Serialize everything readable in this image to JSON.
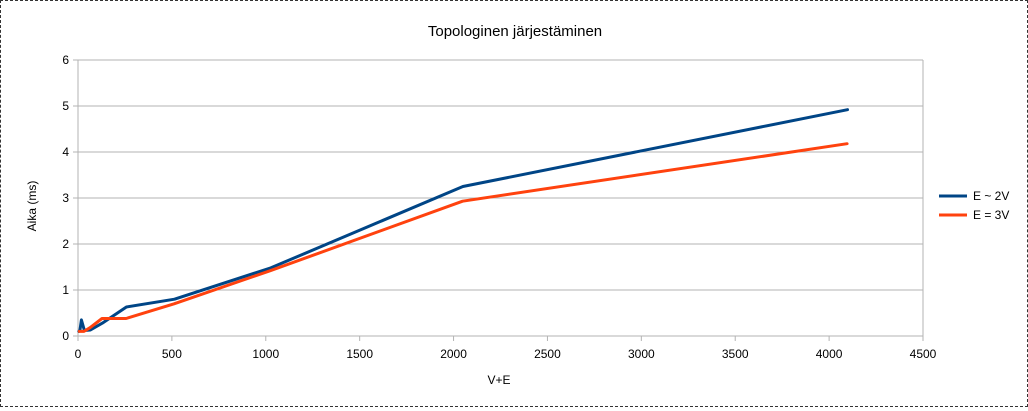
{
  "chart_data": {
    "type": "line",
    "title": "Topologinen järjestäminen",
    "xlabel": "V+E",
    "ylabel": "Aika (ms)",
    "xlim": [
      0,
      4500
    ],
    "ylim": [
      0,
      6
    ],
    "xticks": [
      "0",
      "500",
      "1000",
      "1500",
      "2000",
      "2500",
      "3000",
      "3500",
      "4000",
      "4500"
    ],
    "yticks": [
      "0",
      "1",
      "2",
      "3",
      "4",
      "5",
      "6"
    ],
    "grid": "horizontal",
    "legend_position": "right",
    "series": [
      {
        "name": "E ~ 2V",
        "color": "#004586",
        "points": [
          [
            5,
            0.1
          ],
          [
            10,
            0.12
          ],
          [
            18,
            0.35
          ],
          [
            34,
            0.12
          ],
          [
            66,
            0.13
          ],
          [
            130,
            0.28
          ],
          [
            258,
            0.63
          ],
          [
            514,
            0.8
          ],
          [
            1026,
            1.48
          ],
          [
            2050,
            3.25
          ],
          [
            4098,
            4.92
          ]
        ]
      },
      {
        "name": "E = 3V",
        "color": "#ff420e",
        "points": [
          [
            7,
            0.1
          ],
          [
            16,
            0.1
          ],
          [
            32,
            0.1
          ],
          [
            64,
            0.18
          ],
          [
            128,
            0.38
          ],
          [
            256,
            0.38
          ],
          [
            512,
            0.7
          ],
          [
            1024,
            1.42
          ],
          [
            2048,
            2.93
          ],
          [
            4096,
            4.18
          ]
        ]
      }
    ]
  }
}
